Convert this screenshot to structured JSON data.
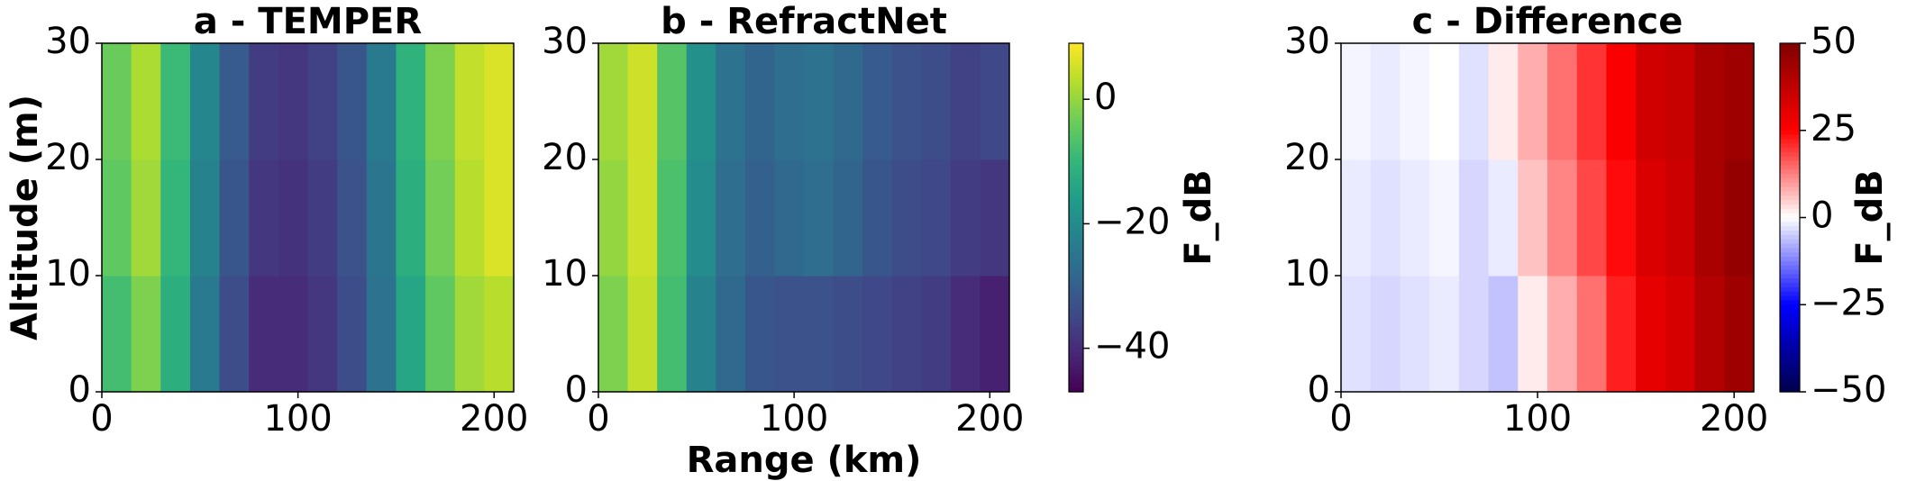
{
  "chart_data": [
    {
      "type": "heatmap",
      "title": "a - TEMPER",
      "ylabel": "Altitude (m)",
      "colormap": "viridis",
      "xbins": [
        0,
        15,
        30,
        45,
        60,
        75,
        90,
        105,
        120,
        135,
        150,
        165,
        180,
        195,
        210
      ],
      "ybins": [
        0,
        10,
        20,
        30
      ],
      "z": [
        [
          -8,
          -2,
          -12,
          -24,
          -34,
          -40,
          -40,
          -38,
          -34,
          -26,
          -14,
          -5,
          1,
          3
        ],
        [
          -5,
          1,
          -10,
          -22,
          -32,
          -38,
          -39,
          -37,
          -33,
          -25,
          -12,
          -3,
          3,
          6
        ],
        [
          -4,
          2,
          -9,
          -21,
          -31,
          -37,
          -38,
          -36,
          -32,
          -24,
          -11,
          -2,
          4,
          6
        ]
      ],
      "zlim": [
        -47,
        9
      ],
      "xlim": [
        0,
        210
      ],
      "xticks": [
        0,
        100,
        200
      ],
      "ylim": [
        0,
        30
      ],
      "yticks": [
        0,
        10,
        20,
        30
      ]
    },
    {
      "type": "heatmap",
      "title": "b - RefractNet",
      "xlabel": "Range (km)",
      "colormap": "viridis",
      "xbins": [
        0,
        15,
        30,
        45,
        60,
        75,
        90,
        105,
        120,
        135,
        150,
        165,
        180,
        195,
        210
      ],
      "ybins": [
        0,
        10,
        20,
        30
      ],
      "z": [
        [
          -2,
          4,
          -8,
          -22,
          -28,
          -32,
          -33,
          -33,
          -34,
          -35,
          -36,
          -37,
          -40,
          -42
        ],
        [
          0,
          5,
          -7,
          -20,
          -27,
          -30,
          -28,
          -27,
          -29,
          -32,
          -34,
          -35,
          -37,
          -38
        ],
        [
          1,
          5,
          -6,
          -19,
          -26,
          -29,
          -27,
          -26,
          -28,
          -31,
          -33,
          -34,
          -36,
          -35
        ]
      ],
      "zlim": [
        -47,
        9
      ],
      "xlim": [
        0,
        210
      ],
      "xticks": [
        0,
        100,
        200
      ],
      "ylim": [
        0,
        30
      ],
      "yticks": [
        0,
        10,
        20,
        30
      ],
      "colorbar": {
        "label": "F_dB",
        "lim": [
          -47,
          9
        ],
        "ticks": [
          0,
          {
            "value": -20,
            "label": "−20"
          },
          {
            "value": -40,
            "label": "−40"
          }
        ]
      }
    },
    {
      "type": "heatmap",
      "title": "c - Difference",
      "colormap": "seismic",
      "xbins": [
        0,
        15,
        30,
        45,
        60,
        75,
        90,
        105,
        120,
        135,
        150,
        165,
        180,
        195,
        210
      ],
      "ybins": [
        0,
        10,
        20,
        30
      ],
      "z": [
        [
          -3,
          -4,
          -3,
          -2,
          -4,
          -6,
          2,
          8,
          14,
          22,
          30,
          33,
          40,
          44
        ],
        [
          -2,
          -3,
          -2,
          -1,
          -4,
          -2,
          6,
          12,
          18,
          24,
          32,
          35,
          42,
          46
        ],
        [
          -1,
          -2,
          -1,
          0,
          -3,
          2,
          8,
          14,
          20,
          26,
          34,
          36,
          42,
          44
        ]
      ],
      "zlim": [
        -50,
        50
      ],
      "xlim": [
        0,
        210
      ],
      "xticks": [
        0,
        100,
        200
      ],
      "ylim": [
        0,
        30
      ],
      "yticks": [
        0,
        10,
        20,
        30
      ],
      "colorbar": {
        "label": "F_dB",
        "lim": [
          -50,
          50
        ],
        "ticks": [
          50,
          25,
          0,
          {
            "value": -25,
            "label": "−25"
          },
          {
            "value": -50,
            "label": "−50"
          }
        ]
      }
    }
  ]
}
